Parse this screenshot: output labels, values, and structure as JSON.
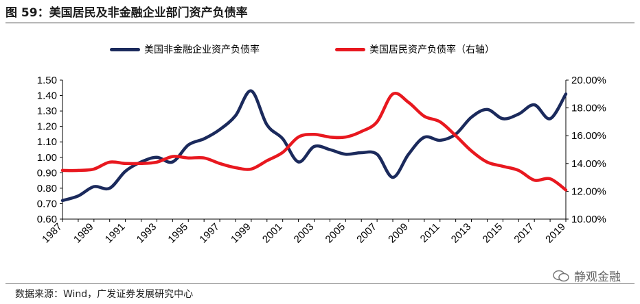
{
  "header": {
    "title": "图 59：美国居民及非金融企业部门资产负债率"
  },
  "colors": {
    "navy": "#1b2a5c",
    "red": "#e8181f"
  },
  "footer": {
    "source": "数据来源：Wind，广发证券发展研究中心",
    "watermark": "静观金融"
  },
  "chart_data": {
    "type": "line",
    "title": "",
    "legend": [
      "美国非金融企业资产负债率",
      "美国居民资产负债率（右轴）"
    ],
    "x_ticks": [
      "1987",
      "1989",
      "1991",
      "1993",
      "1995",
      "1997",
      "1999",
      "2001",
      "2003",
      "2005",
      "2007",
      "2009",
      "2011",
      "2013",
      "2015",
      "2017",
      "2019"
    ],
    "left_axis": {
      "ticks": [
        "0.60",
        "0.70",
        "0.80",
        "0.90",
        "1.00",
        "1.10",
        "1.20",
        "1.30",
        "1.40",
        "1.50"
      ],
      "range": [
        0.6,
        1.5
      ]
    },
    "right_axis": {
      "ticks": [
        "10.00%",
        "12.00%",
        "14.00%",
        "16.00%",
        "18.00%",
        "20.00%"
      ],
      "range": [
        10,
        20
      ]
    },
    "series": [
      {
        "name": "美国非金融企业资产负债率",
        "axis": "left",
        "color": "#1b2a5c",
        "x": [
          1987,
          1988,
          1989,
          1990,
          1991,
          1992,
          1993,
          1994,
          1995,
          1996,
          1997,
          1998,
          1999,
          2000,
          2001,
          2002,
          2003,
          2004,
          2005,
          2006,
          2007,
          2008,
          2009,
          2010,
          2011,
          2012,
          2013,
          2014,
          2015,
          2016,
          2017,
          2018,
          2019
        ],
        "values": [
          0.72,
          0.75,
          0.81,
          0.8,
          0.91,
          0.97,
          1.0,
          0.97,
          1.08,
          1.12,
          1.18,
          1.27,
          1.43,
          1.21,
          1.12,
          0.97,
          1.07,
          1.05,
          1.02,
          1.03,
          1.02,
          0.87,
          1.02,
          1.13,
          1.11,
          1.15,
          1.26,
          1.31,
          1.25,
          1.28,
          1.34,
          1.25,
          1.41
        ]
      },
      {
        "name": "美国居民资产负债率（右轴）",
        "axis": "right",
        "color": "#e8181f",
        "x": [
          1987,
          1988,
          1989,
          1990,
          1991,
          1992,
          1993,
          1994,
          1995,
          1996,
          1997,
          1998,
          1999,
          2000,
          2001,
          2002,
          2003,
          2004,
          2005,
          2006,
          2007,
          2008,
          2009,
          2010,
          2011,
          2012,
          2013,
          2014,
          2015,
          2016,
          2017,
          2018,
          2019
        ],
        "values": [
          13.5,
          13.5,
          13.6,
          14.1,
          14.0,
          14.0,
          14.1,
          14.5,
          14.4,
          14.4,
          14.0,
          13.7,
          13.6,
          14.2,
          14.8,
          15.9,
          16.1,
          15.9,
          15.9,
          16.3,
          17.0,
          19.0,
          18.4,
          17.4,
          17.0,
          16.0,
          14.9,
          14.1,
          13.8,
          13.5,
          12.8,
          12.9,
          12.1
        ]
      }
    ]
  }
}
